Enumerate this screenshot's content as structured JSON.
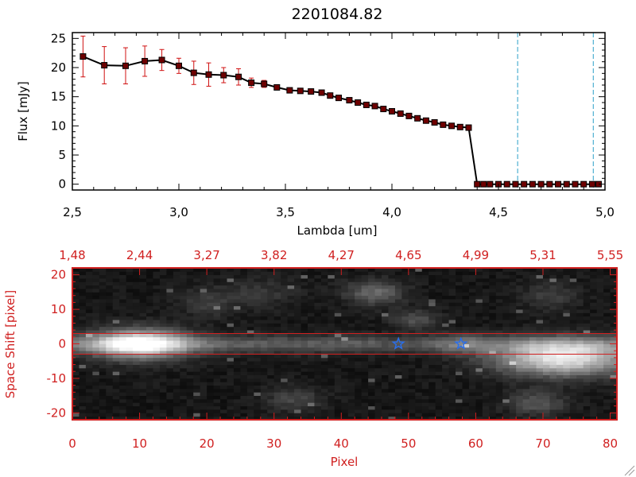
{
  "colors": {
    "background": "#ffffff",
    "axis": "#000000",
    "error_bar": "#d01010",
    "marker_fill": "#6e0000",
    "image_frame": "#d02020",
    "vline": "#2aa0c8",
    "star": "#2a6ee8"
  },
  "chart_data": [
    {
      "type": "line",
      "title": "2201084.82",
      "xlabel": "Lambda [um]",
      "ylabel": "Flux [mJy]",
      "xlim": [
        2.5,
        5.0
      ],
      "ylim": [
        -1,
        26
      ],
      "x_ticks": [
        "2.5",
        "3.0",
        "3.5",
        "4.0",
        "4.5",
        "5.0"
      ],
      "y_ticks": [
        "0",
        "5",
        "10",
        "15",
        "20",
        "25"
      ],
      "vertical_lines": [
        4.59,
        4.945
      ],
      "series": [
        {
          "x": [
            2.55,
            2.65,
            2.75,
            2.84,
            2.92,
            3.0,
            3.07,
            3.14,
            3.21,
            3.28,
            3.34,
            3.4,
            3.46,
            3.52,
            3.57,
            3.62,
            3.67,
            3.71,
            3.75,
            3.8,
            3.84,
            3.88,
            3.92,
            3.96,
            4.0,
            4.04,
            4.08,
            4.12,
            4.16,
            4.2,
            4.24,
            4.28,
            4.32,
            4.36,
            4.4,
            4.43,
            4.46,
            4.5,
            4.54,
            4.58,
            4.62,
            4.66,
            4.7,
            4.74,
            4.78,
            4.82,
            4.86,
            4.9,
            4.94,
            4.97
          ],
          "values": [
            21.9,
            20.4,
            20.3,
            21.1,
            21.3,
            20.3,
            19.1,
            18.8,
            18.7,
            18.4,
            17.4,
            17.2,
            16.6,
            16.1,
            16.0,
            15.9,
            15.7,
            15.2,
            14.8,
            14.4,
            14.0,
            13.6,
            13.4,
            12.9,
            12.5,
            12.1,
            11.7,
            11.3,
            10.9,
            10.6,
            10.2,
            10.0,
            9.8,
            9.7,
            0.0,
            0.0,
            0.0,
            0.0,
            0.0,
            0.0,
            0.0,
            0.0,
            0.0,
            0.0,
            0.0,
            0.0,
            0.0,
            0.0,
            0.0,
            0.0
          ],
          "errors": [
            3.5,
            3.2,
            3.1,
            2.6,
            1.8,
            1.3,
            2.0,
            2.0,
            1.3,
            1.4,
            0.8,
            0.6,
            0.4,
            0.3,
            0.3,
            0.3,
            0.3,
            0.3,
            0.3,
            0.3,
            0.3,
            0.3,
            0.3,
            0.3,
            0.3,
            0.3,
            0.3,
            0.3,
            0.3,
            0.3,
            0.3,
            0.3,
            0.3,
            0.3,
            0,
            0,
            0,
            0,
            0,
            0,
            0,
            0,
            0,
            0,
            0,
            0,
            0,
            0,
            0,
            0
          ]
        }
      ]
    },
    {
      "type": "heatmap",
      "xlabel": "Pixel",
      "ylabel": "Space Shift [pixel]",
      "xlim": [
        0,
        81
      ],
      "ylim": [
        -22,
        22
      ],
      "x_ticks": [
        "0",
        "10",
        "20",
        "30",
        "40",
        "50",
        "60",
        "70",
        "80"
      ],
      "y_ticks": [
        "-20",
        "-10",
        "0",
        "10",
        "20"
      ],
      "top_ticks": [
        "1.48",
        "2.44",
        "3.27",
        "3.82",
        "4.27",
        "4.65",
        "4.99",
        "5.31",
        "5.55"
      ],
      "aperture_rows": [
        3,
        -3
      ],
      "stars": [
        [
          48.5,
          0
        ],
        [
          57.8,
          0
        ]
      ],
      "sources": [
        {
          "x": 10,
          "y": 0,
          "amp": 0.85,
          "sx": 5,
          "sy": 3
        },
        {
          "x": 73,
          "y": -4,
          "amp": 0.85,
          "sx": 7,
          "sy": 3.5
        },
        {
          "x": 45,
          "y": 15,
          "amp": 0.32,
          "sx": 3,
          "sy": 2.5
        },
        {
          "x": 51,
          "y": 7,
          "amp": 0.22,
          "sx": 2.5,
          "sy": 2
        },
        {
          "x": 69,
          "y": -17,
          "amp": 0.25,
          "sx": 3,
          "sy": 2.5
        },
        {
          "x": 33,
          "y": -16,
          "amp": 0.18,
          "sx": 3,
          "sy": 2.5
        },
        {
          "x": 71,
          "y": 14,
          "amp": 0.15,
          "sx": 3,
          "sy": 3
        },
        {
          "x": 58,
          "y": 0,
          "amp": 0.18,
          "sx": 3,
          "sy": 2
        },
        {
          "x": 28,
          "y": 15,
          "amp": 0.12,
          "sx": 4,
          "sy": 3
        },
        {
          "x": 20,
          "y": 12,
          "amp": 0.14,
          "sx": 3,
          "sy": 3
        }
      ]
    }
  ]
}
